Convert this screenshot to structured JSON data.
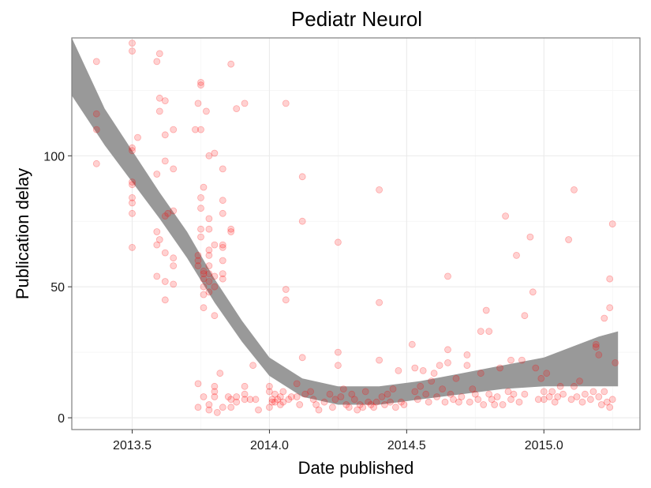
{
  "chart_data": {
    "type": "scatter",
    "title": "Pediatr Neurol",
    "xlabel": "Date published",
    "ylabel": "Publication delay",
    "xlim": [
      2013.28,
      2015.35
    ],
    "ylim": [
      -4.5,
      145
    ],
    "x_ticks": [
      2013.5,
      2014.0,
      2014.5,
      2015.0
    ],
    "x_tick_labels": [
      "2013.5",
      "2014.0",
      "2014.5",
      "2015.0"
    ],
    "y_ticks": [
      0,
      50,
      100
    ],
    "y_tick_labels": [
      "0",
      "50",
      "100"
    ],
    "grid": true,
    "legend": "none",
    "colors": {
      "points": "#ff0000",
      "smooth_band": "#999999",
      "panel_border": "#7f7f7f"
    },
    "series": [
      {
        "type": "scatter",
        "points": [
          [
            2013.37,
            136
          ],
          [
            2013.37,
            116
          ],
          [
            2013.37,
            110
          ],
          [
            2013.37,
            97
          ],
          [
            2013.5,
            143
          ],
          [
            2013.5,
            140
          ],
          [
            2013.5,
            103
          ],
          [
            2013.5,
            102
          ],
          [
            2013.5,
            90
          ],
          [
            2013.5,
            89
          ],
          [
            2013.5,
            84
          ],
          [
            2013.5,
            82
          ],
          [
            2013.5,
            78
          ],
          [
            2013.5,
            65
          ],
          [
            2013.52,
            107
          ],
          [
            2013.59,
            136
          ],
          [
            2013.6,
            139
          ],
          [
            2013.6,
            122
          ],
          [
            2013.6,
            117
          ],
          [
            2013.59,
            93
          ],
          [
            2013.59,
            71
          ],
          [
            2013.59,
            66
          ],
          [
            2013.59,
            54
          ],
          [
            2013.6,
            68
          ],
          [
            2013.62,
            121
          ],
          [
            2013.62,
            108
          ],
          [
            2013.62,
            98
          ],
          [
            2013.62,
            77
          ],
          [
            2013.62,
            63
          ],
          [
            2013.62,
            52
          ],
          [
            2013.62,
            45
          ],
          [
            2013.63,
            78
          ],
          [
            2013.65,
            110
          ],
          [
            2013.65,
            95
          ],
          [
            2013.65,
            79
          ],
          [
            2013.65,
            61
          ],
          [
            2013.65,
            58
          ],
          [
            2013.65,
            51
          ],
          [
            2013.73,
            110
          ],
          [
            2013.74,
            120
          ],
          [
            2013.75,
            128
          ],
          [
            2013.75,
            127
          ],
          [
            2013.75,
            110
          ],
          [
            2013.75,
            84
          ],
          [
            2013.75,
            80
          ],
          [
            2013.75,
            72
          ],
          [
            2013.75,
            69
          ],
          [
            2013.74,
            13
          ],
          [
            2013.74,
            4
          ],
          [
            2013.74,
            62
          ],
          [
            2013.74,
            60
          ],
          [
            2013.74,
            58
          ],
          [
            2013.76,
            56
          ],
          [
            2013.76,
            55
          ],
          [
            2013.76,
            53
          ],
          [
            2013.76,
            50
          ],
          [
            2013.76,
            47
          ],
          [
            2013.76,
            42
          ],
          [
            2013.76,
            88
          ],
          [
            2013.76,
            8
          ],
          [
            2013.77,
            117
          ],
          [
            2013.78,
            100
          ],
          [
            2013.78,
            76
          ],
          [
            2013.78,
            72
          ],
          [
            2013.78,
            64
          ],
          [
            2013.78,
            62
          ],
          [
            2013.78,
            58
          ],
          [
            2013.78,
            55
          ],
          [
            2013.78,
            52
          ],
          [
            2013.78,
            48
          ],
          [
            2013.78,
            5
          ],
          [
            2013.78,
            3
          ],
          [
            2013.8,
            101
          ],
          [
            2013.8,
            66
          ],
          [
            2013.8,
            54
          ],
          [
            2013.8,
            50
          ],
          [
            2013.8,
            39
          ],
          [
            2013.8,
            12
          ],
          [
            2013.8,
            10
          ],
          [
            2013.8,
            8
          ],
          [
            2013.81,
            2
          ],
          [
            2013.83,
            95
          ],
          [
            2013.83,
            83
          ],
          [
            2013.83,
            78
          ],
          [
            2013.83,
            66
          ],
          [
            2013.83,
            65
          ],
          [
            2013.83,
            60
          ],
          [
            2013.83,
            55
          ],
          [
            2013.83,
            53
          ],
          [
            2013.83,
            4
          ],
          [
            2013.82,
            17
          ],
          [
            2013.86,
            135
          ],
          [
            2013.86,
            72
          ],
          [
            2013.86,
            71
          ],
          [
            2013.86,
            7
          ],
          [
            2013.86,
            4
          ],
          [
            2013.85,
            8
          ],
          [
            2013.88,
            118
          ],
          [
            2013.88,
            8
          ],
          [
            2013.88,
            6
          ],
          [
            2013.91,
            120
          ],
          [
            2013.91,
            12
          ],
          [
            2013.91,
            9
          ],
          [
            2013.91,
            7
          ],
          [
            2013.93,
            7
          ],
          [
            2013.94,
            20
          ],
          [
            2013.95,
            7
          ],
          [
            2013.96,
            3
          ],
          [
            2014.0,
            12
          ],
          [
            2014.0,
            10
          ],
          [
            2014.0,
            4
          ],
          [
            2014.01,
            6
          ],
          [
            2014.01,
            7
          ],
          [
            2014.02,
            6
          ],
          [
            2014.02,
            9
          ],
          [
            2014.03,
            7
          ],
          [
            2014.04,
            8
          ],
          [
            2014.04,
            5
          ],
          [
            2014.05,
            10
          ],
          [
            2014.05,
            6
          ],
          [
            2014.06,
            120
          ],
          [
            2014.06,
            49
          ],
          [
            2014.06,
            45
          ],
          [
            2014.07,
            7
          ],
          [
            2014.08,
            8
          ],
          [
            2014.1,
            13
          ],
          [
            2014.1,
            8
          ],
          [
            2014.11,
            5
          ],
          [
            2014.12,
            92
          ],
          [
            2014.12,
            75
          ],
          [
            2014.12,
            23
          ],
          [
            2014.13,
            9
          ],
          [
            2014.15,
            10
          ],
          [
            2014.16,
            7
          ],
          [
            2014.17,
            5
          ],
          [
            2014.18,
            3
          ],
          [
            2014.2,
            6
          ],
          [
            2014.22,
            9
          ],
          [
            2014.23,
            4
          ],
          [
            2014.24,
            7
          ],
          [
            2014.25,
            67
          ],
          [
            2014.25,
            25
          ],
          [
            2014.25,
            20
          ],
          [
            2014.26,
            8
          ],
          [
            2014.27,
            11
          ],
          [
            2014.28,
            5
          ],
          [
            2014.29,
            4
          ],
          [
            2014.3,
            9
          ],
          [
            2014.31,
            7
          ],
          [
            2014.32,
            3
          ],
          [
            2014.33,
            5
          ],
          [
            2014.34,
            4
          ],
          [
            2014.35,
            10
          ],
          [
            2014.36,
            6
          ],
          [
            2014.37,
            5
          ],
          [
            2014.38,
            4
          ],
          [
            2014.39,
            6
          ],
          [
            2014.4,
            87
          ],
          [
            2014.4,
            44
          ],
          [
            2014.4,
            22
          ],
          [
            2014.41,
            8
          ],
          [
            2014.42,
            5
          ],
          [
            2014.43,
            9
          ],
          [
            2014.44,
            6
          ],
          [
            2014.45,
            11
          ],
          [
            2014.46,
            4
          ],
          [
            2014.47,
            18
          ],
          [
            2014.48,
            6
          ],
          [
            2014.49,
            5
          ],
          [
            2014.52,
            28
          ],
          [
            2014.53,
            19
          ],
          [
            2014.53,
            10
          ],
          [
            2014.54,
            7
          ],
          [
            2014.55,
            12
          ],
          [
            2014.56,
            18
          ],
          [
            2014.57,
            9
          ],
          [
            2014.58,
            6
          ],
          [
            2014.59,
            14
          ],
          [
            2014.6,
            17
          ],
          [
            2014.61,
            8
          ],
          [
            2014.62,
            20
          ],
          [
            2014.63,
            11
          ],
          [
            2014.64,
            6
          ],
          [
            2014.65,
            54
          ],
          [
            2014.65,
            26
          ],
          [
            2014.65,
            21
          ],
          [
            2014.66,
            9
          ],
          [
            2014.67,
            7
          ],
          [
            2014.68,
            15
          ],
          [
            2014.69,
            6
          ],
          [
            2014.7,
            8
          ],
          [
            2014.72,
            24
          ],
          [
            2014.72,
            20
          ],
          [
            2014.73,
            6
          ],
          [
            2014.74,
            11
          ],
          [
            2014.75,
            9
          ],
          [
            2014.76,
            7
          ],
          [
            2014.77,
            33
          ],
          [
            2014.77,
            17
          ],
          [
            2014.78,
            5
          ],
          [
            2014.79,
            41
          ],
          [
            2014.8,
            33
          ],
          [
            2014.8,
            9
          ],
          [
            2014.81,
            7
          ],
          [
            2014.82,
            5
          ],
          [
            2014.83,
            8
          ],
          [
            2014.84,
            19
          ],
          [
            2014.85,
            5
          ],
          [
            2014.86,
            77
          ],
          [
            2014.87,
            10
          ],
          [
            2014.88,
            22
          ],
          [
            2014.88,
            7
          ],
          [
            2014.89,
            9
          ],
          [
            2014.9,
            62
          ],
          [
            2014.91,
            6
          ],
          [
            2014.92,
            22
          ],
          [
            2014.93,
            39
          ],
          [
            2014.93,
            9
          ],
          [
            2014.95,
            69
          ],
          [
            2014.96,
            48
          ],
          [
            2014.97,
            19
          ],
          [
            2014.98,
            7
          ],
          [
            2014.99,
            15
          ],
          [
            2015.0,
            10
          ],
          [
            2015.0,
            7
          ],
          [
            2015.01,
            17
          ],
          [
            2015.02,
            8
          ],
          [
            2015.03,
            10
          ],
          [
            2015.04,
            6
          ],
          [
            2015.05,
            8
          ],
          [
            2015.06,
            12
          ],
          [
            2015.07,
            9
          ],
          [
            2015.09,
            68
          ],
          [
            2015.1,
            7
          ],
          [
            2015.11,
            87
          ],
          [
            2015.11,
            12
          ],
          [
            2015.12,
            8
          ],
          [
            2015.13,
            14
          ],
          [
            2015.14,
            6
          ],
          [
            2015.15,
            9
          ],
          [
            2015.17,
            7
          ],
          [
            2015.18,
            10
          ],
          [
            2015.19,
            28
          ],
          [
            2015.19,
            27
          ],
          [
            2015.2,
            24
          ],
          [
            2015.2,
            8
          ],
          [
            2015.21,
            5
          ],
          [
            2015.22,
            10
          ],
          [
            2015.22,
            38
          ],
          [
            2015.23,
            6
          ],
          [
            2015.24,
            53
          ],
          [
            2015.24,
            42
          ],
          [
            2015.24,
            4
          ],
          [
            2015.25,
            74
          ],
          [
            2015.25,
            7
          ],
          [
            2015.26,
            21
          ]
        ]
      },
      {
        "type": "smooth_band",
        "x": [
          2013.28,
          2013.4,
          2013.5,
          2013.6,
          2013.7,
          2013.8,
          2013.9,
          2014.0,
          2014.12,
          2014.25,
          2014.4,
          2014.55,
          2014.7,
          2014.85,
          2015.0,
          2015.1,
          2015.2,
          2015.27
        ],
        "upper": [
          145,
          118,
          102,
          86,
          71,
          53,
          37,
          23,
          15,
          12,
          12,
          14,
          17,
          20,
          23,
          27,
          31,
          33
        ],
        "lower": [
          123,
          104,
          90,
          76,
          61,
          44,
          29,
          16,
          8,
          5,
          5,
          7,
          9,
          11,
          12,
          12,
          12,
          12
        ]
      }
    ]
  }
}
